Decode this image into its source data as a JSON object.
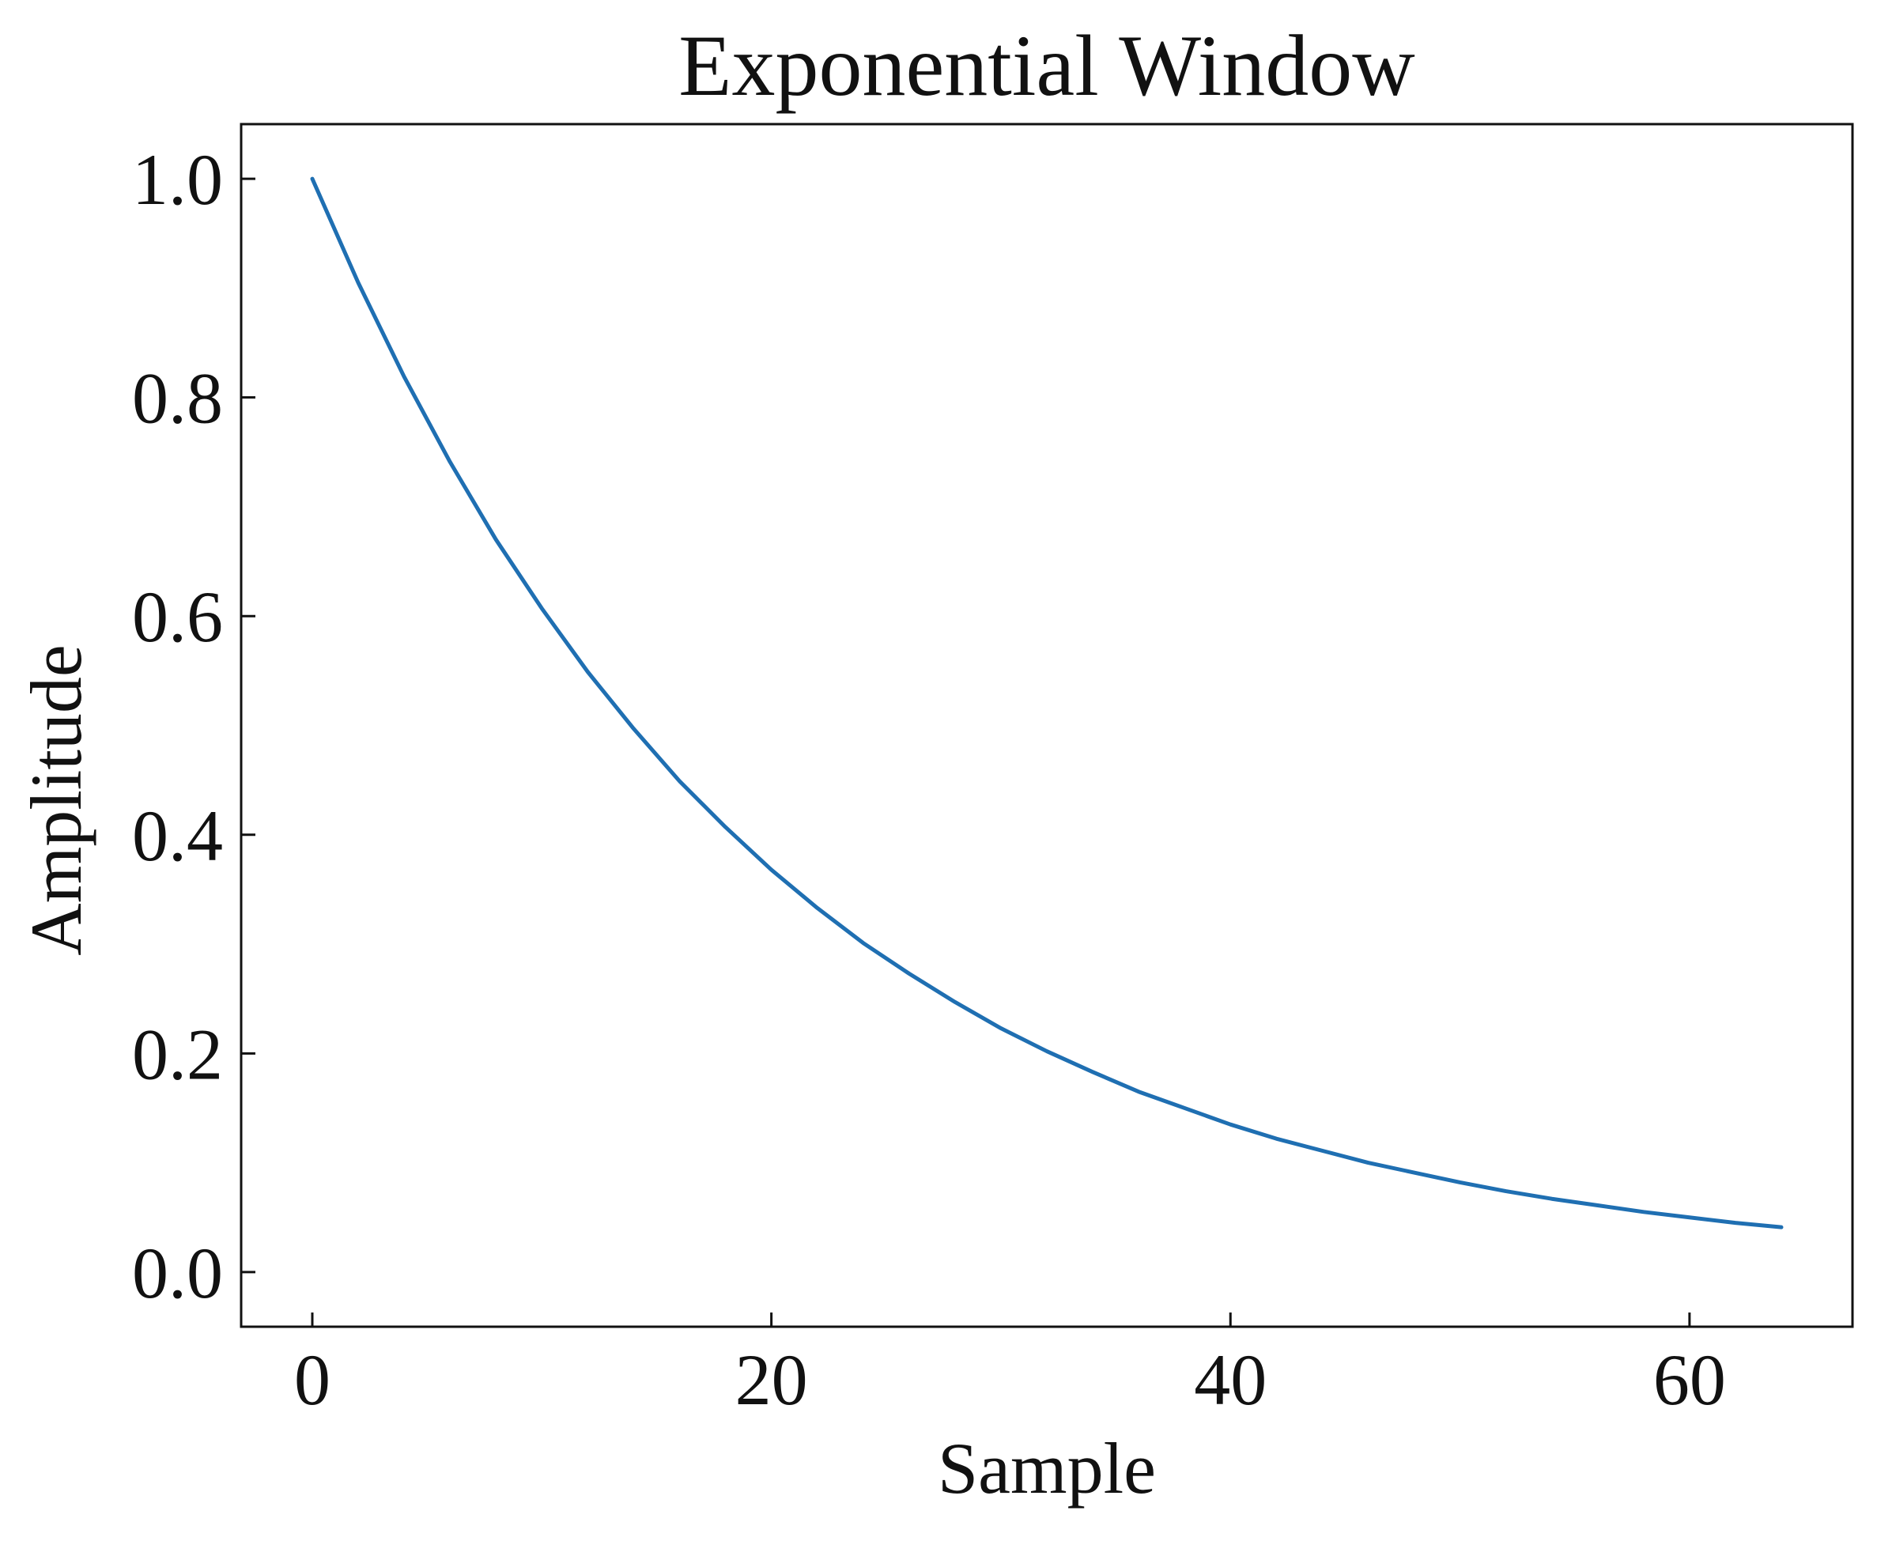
{
  "chart_data": {
    "type": "line",
    "title": "Exponential Window",
    "xlabel": "Sample",
    "ylabel": "Amplitude",
    "xlim": [
      -3.1,
      67.1
    ],
    "ylim": [
      -0.05,
      1.05
    ],
    "x_ticks": [
      0,
      20,
      40,
      60
    ],
    "x_tick_labels": [
      "0",
      "20",
      "40",
      "60"
    ],
    "y_ticks": [
      0.0,
      0.2,
      0.4,
      0.6,
      0.8,
      1.0
    ],
    "y_tick_labels": [
      "0.0",
      "0.2",
      "0.4",
      "0.6",
      "0.8",
      "1.0"
    ],
    "grid": false,
    "legend": "none",
    "colors": {
      "series": "#1f6fb2",
      "axes": "#111111"
    },
    "series": [
      {
        "x": [
          0,
          2,
          4,
          6,
          8,
          10,
          12,
          14,
          16,
          18,
          20,
          22,
          24,
          26,
          28,
          30,
          32,
          34,
          36,
          38,
          40,
          42,
          44,
          46,
          48,
          50,
          52,
          54,
          56,
          58,
          60,
          62,
          64
        ],
        "values": [
          1.0,
          0.905,
          0.819,
          0.741,
          0.67,
          0.607,
          0.549,
          0.497,
          0.449,
          0.407,
          0.368,
          0.333,
          0.301,
          0.273,
          0.247,
          0.223,
          0.202,
          0.183,
          0.165,
          0.15,
          0.135,
          0.122,
          0.111,
          0.1,
          0.091,
          0.082,
          0.074,
          0.067,
          0.061,
          0.055,
          0.05,
          0.045,
          0.041
        ]
      }
    ]
  }
}
